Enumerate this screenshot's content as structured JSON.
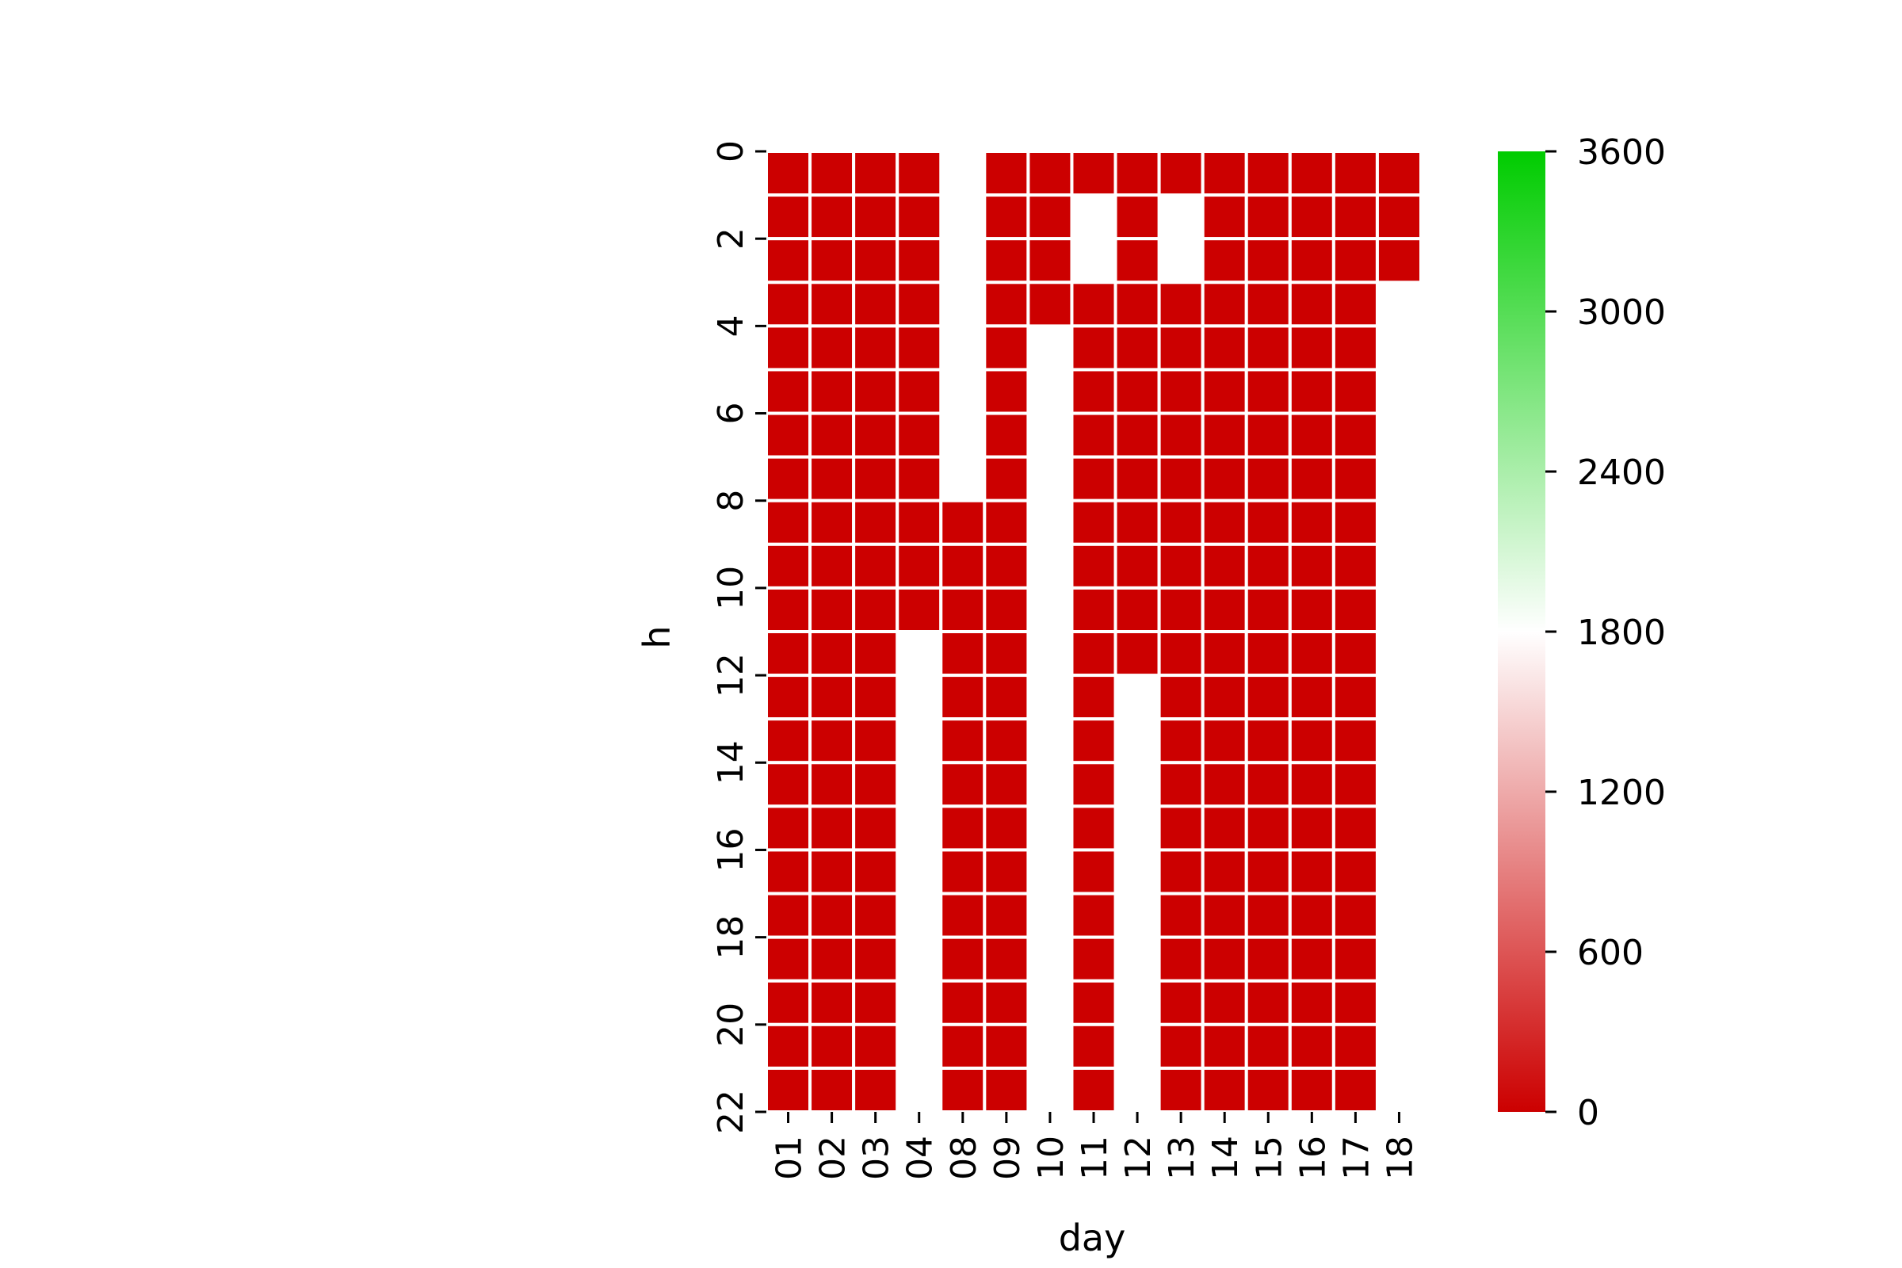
{
  "chart_data": {
    "type": "heatmap",
    "title": "",
    "xlabel": "day",
    "ylabel": "h",
    "x_categories": [
      "01",
      "02",
      "03",
      "04",
      "08",
      "09",
      "10",
      "11",
      "12",
      "13",
      "14",
      "15",
      "16",
      "17",
      "18"
    ],
    "y_categories": [
      0,
      1,
      2,
      3,
      4,
      5,
      6,
      7,
      8,
      9,
      10,
      11,
      12,
      13,
      14,
      15,
      16,
      17,
      18,
      19,
      20,
      21
    ],
    "y_tick_labels": [
      "0",
      "2",
      "4",
      "6",
      "8",
      "10",
      "12",
      "14",
      "16",
      "18",
      "20",
      "22"
    ],
    "missing_value": null,
    "values": [
      [
        0,
        0,
        0,
        0,
        null,
        0,
        0,
        0,
        0,
        0,
        0,
        0,
        0,
        0,
        0
      ],
      [
        0,
        0,
        0,
        0,
        null,
        0,
        0,
        null,
        0,
        null,
        0,
        0,
        0,
        0,
        0
      ],
      [
        0,
        0,
        0,
        0,
        null,
        0,
        0,
        null,
        0,
        null,
        0,
        0,
        0,
        0,
        0
      ],
      [
        0,
        0,
        0,
        0,
        null,
        0,
        0,
        0,
        0,
        0,
        0,
        0,
        0,
        0,
        null
      ],
      [
        0,
        0,
        0,
        0,
        null,
        0,
        null,
        0,
        0,
        0,
        0,
        0,
        0,
        0,
        null
      ],
      [
        0,
        0,
        0,
        0,
        null,
        0,
        null,
        0,
        0,
        0,
        0,
        0,
        0,
        0,
        null
      ],
      [
        0,
        0,
        0,
        0,
        null,
        0,
        null,
        0,
        0,
        0,
        0,
        0,
        0,
        0,
        null
      ],
      [
        0,
        0,
        0,
        0,
        null,
        0,
        null,
        0,
        0,
        0,
        0,
        0,
        0,
        0,
        null
      ],
      [
        0,
        0,
        0,
        0,
        0,
        0,
        null,
        0,
        0,
        0,
        0,
        0,
        0,
        0,
        null
      ],
      [
        0,
        0,
        0,
        0,
        0,
        0,
        null,
        0,
        0,
        0,
        0,
        0,
        0,
        0,
        null
      ],
      [
        0,
        0,
        0,
        0,
        0,
        0,
        null,
        0,
        0,
        0,
        0,
        0,
        0,
        0,
        null
      ],
      [
        0,
        0,
        0,
        null,
        0,
        0,
        null,
        0,
        0,
        0,
        0,
        0,
        0,
        0,
        null
      ],
      [
        0,
        0,
        0,
        null,
        0,
        0,
        null,
        0,
        null,
        0,
        0,
        0,
        0,
        0,
        null
      ],
      [
        0,
        0,
        0,
        null,
        0,
        0,
        null,
        0,
        null,
        0,
        0,
        0,
        0,
        0,
        null
      ],
      [
        0,
        0,
        0,
        null,
        0,
        0,
        null,
        0,
        null,
        0,
        0,
        0,
        0,
        0,
        null
      ],
      [
        0,
        0,
        0,
        null,
        0,
        0,
        null,
        0,
        null,
        0,
        0,
        0,
        0,
        0,
        null
      ],
      [
        0,
        0,
        0,
        null,
        0,
        0,
        null,
        0,
        null,
        0,
        0,
        0,
        0,
        0,
        null
      ],
      [
        0,
        0,
        0,
        null,
        0,
        0,
        null,
        0,
        null,
        0,
        0,
        0,
        0,
        0,
        null
      ],
      [
        0,
        0,
        0,
        null,
        0,
        0,
        null,
        0,
        null,
        0,
        0,
        0,
        0,
        0,
        null
      ],
      [
        0,
        0,
        0,
        null,
        0,
        0,
        null,
        0,
        null,
        0,
        0,
        0,
        0,
        0,
        null
      ],
      [
        0,
        0,
        0,
        null,
        0,
        0,
        null,
        0,
        null,
        0,
        0,
        0,
        0,
        0,
        null
      ],
      [
        0,
        0,
        0,
        null,
        0,
        0,
        null,
        0,
        null,
        0,
        0,
        0,
        0,
        0,
        null
      ]
    ],
    "colorbar": {
      "min": 0,
      "max": 3600,
      "ticks": [
        0,
        600,
        1200,
        1800,
        2400,
        3000,
        3600
      ],
      "tick_labels": [
        "0",
        "600",
        "1200",
        "1800",
        "2400",
        "3000",
        "3600"
      ],
      "colors": [
        "#cc0000",
        "#ffffff",
        "#00cc00"
      ]
    },
    "cell_border_color": "#ffffff",
    "grid": false,
    "legend": "colorbar-right"
  }
}
